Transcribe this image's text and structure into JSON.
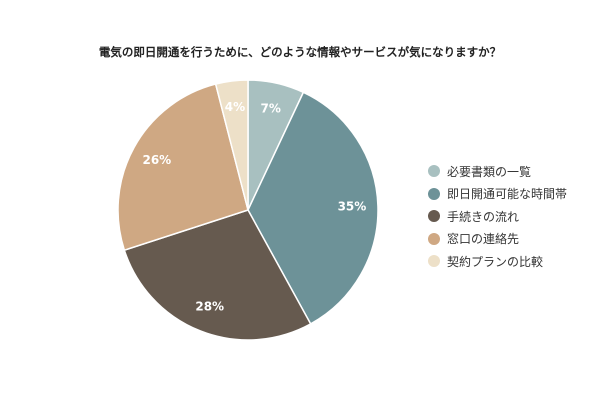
{
  "chart_data": {
    "type": "pie",
    "title": "電気の即日開通を行うために、どのような情報やサービスが気になりますか？",
    "categories": [
      "必要書類の一覧",
      "即日開通可能な時間帯",
      "手続きの流れ",
      "窓口の連絡先",
      "契約プランの比較"
    ],
    "values": [
      7,
      35,
      28,
      26,
      4
    ],
    "value_labels": [
      "7%",
      "35%",
      "28%",
      "26%",
      "4%"
    ],
    "colors": [
      "#a8c0c0",
      "#6d9298",
      "#665a4f",
      "#cfa883",
      "#ede0c8"
    ],
    "legend_position": "right"
  }
}
